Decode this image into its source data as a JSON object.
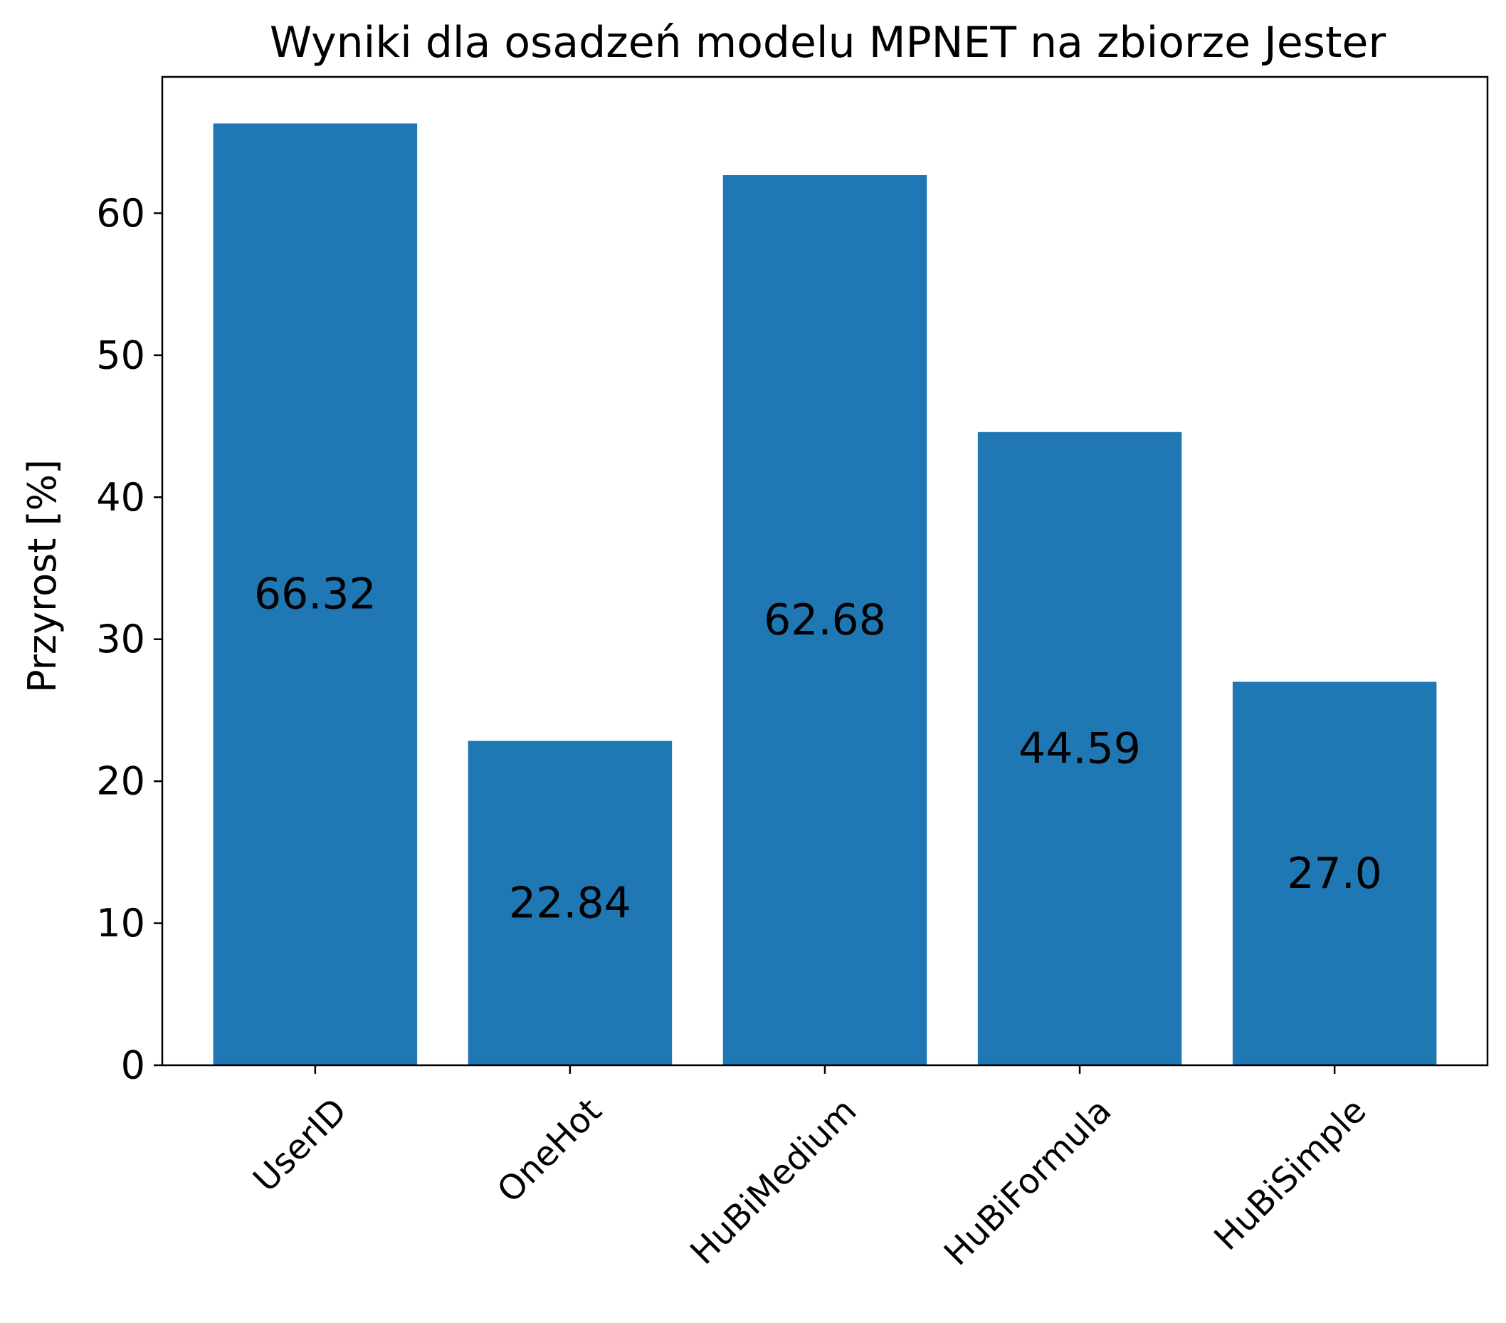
{
  "chart_data": {
    "type": "bar",
    "title": "Wyniki dla osadzeń modelu MPNET na zbiorze Jester",
    "xlabel": "",
    "ylabel": "Przyrost [%]",
    "categories": [
      "UserID",
      "OneHot",
      "HuBiMedium",
      "HuBiFormula",
      "HuBiSimple"
    ],
    "values": [
      66.32,
      22.84,
      62.68,
      44.59,
      27.0
    ],
    "data_labels": [
      "66.32",
      "22.84",
      "62.68",
      "44.59",
      "27.0"
    ],
    "yticks": [
      0,
      10,
      20,
      30,
      40,
      50,
      60
    ],
    "ylim": [
      0,
      69.6
    ],
    "grid": false,
    "bar_color": "#1f77b4"
  }
}
